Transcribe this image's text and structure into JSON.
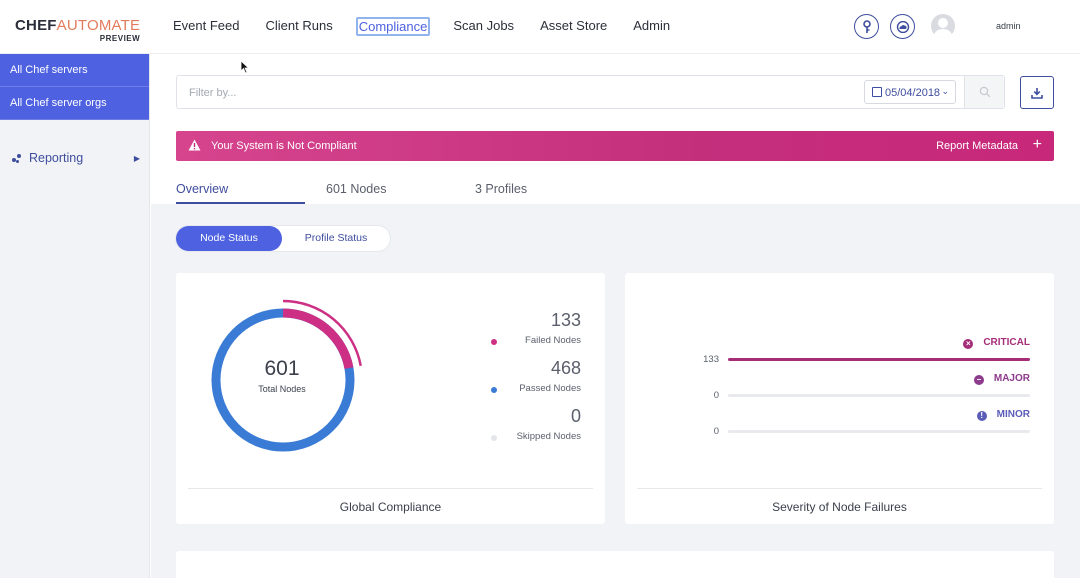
{
  "app": {
    "logo_chef": "CHEF",
    "logo_automate": "AUTOMATE",
    "logo_preview": "PREVIEW"
  },
  "nav": {
    "items": [
      "Event Feed",
      "Client Runs",
      "Compliance",
      "Scan Jobs",
      "Asset Store",
      "Admin"
    ],
    "active": "Compliance",
    "user": "admin"
  },
  "sidebar": {
    "items": [
      {
        "label": "All Chef servers"
      },
      {
        "label": "All Chef server orgs"
      }
    ],
    "reporting": "Reporting"
  },
  "filter": {
    "placeholder": "Filter by...",
    "date": "05/04/2018"
  },
  "banner": {
    "message": "Your System is Not Compliant",
    "meta": "Report Metadata",
    "color": "#c8287a"
  },
  "tabs": [
    "Overview",
    "601 Nodes",
    "3 Profiles"
  ],
  "status_toggle": {
    "on": "Node Status",
    "off": "Profile Status"
  },
  "global_compliance": {
    "title": "Global Compliance",
    "total": "601",
    "total_label": "Total Nodes",
    "stats": [
      {
        "value": "133",
        "label": "Failed Nodes",
        "color": "#cc2f84"
      },
      {
        "value": "468",
        "label": "Passed Nodes",
        "color": "#3a7bd5"
      },
      {
        "value": "0",
        "label": "Skipped Nodes",
        "color": "#e3e5e9"
      }
    ]
  },
  "severity": {
    "title": "Severity of Node Failures",
    "rows": [
      {
        "label": "CRITICAL",
        "value": "133",
        "fraction": 1.0,
        "color": "#a52d78"
      },
      {
        "label": "MAJOR",
        "value": "0",
        "fraction": 0,
        "color": "#8d3b8c"
      },
      {
        "label": "MINOR",
        "value": "0",
        "fraction": 0,
        "color": "#5a5cb8"
      }
    ]
  },
  "colors": {
    "accent": "#4e61e0",
    "nav_dark": "#3e4d9e",
    "failed": "#cc2f84",
    "passed": "#3a7bd5"
  }
}
